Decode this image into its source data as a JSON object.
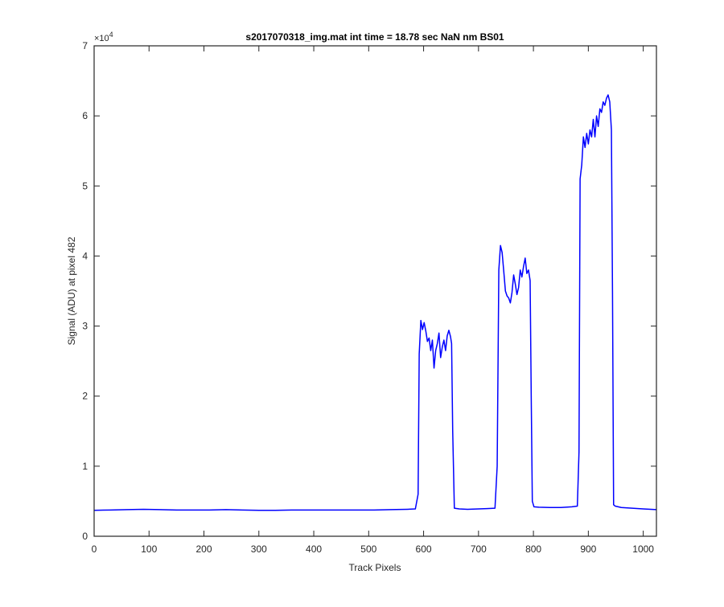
{
  "chart_data": {
    "type": "line",
    "title": "s2017070318_img.mat int time = 18.78 sec  NaN nm BS01",
    "xlabel": "Track Pixels",
    "ylabel": "Signal (ADU) at pixel 482",
    "xlim": [
      0,
      1024
    ],
    "ylim": [
      0,
      70000
    ],
    "y_exponent_label": "×10",
    "y_exponent_power": "4",
    "x_ticks": [
      0,
      100,
      200,
      300,
      400,
      500,
      600,
      700,
      800,
      900,
      1000
    ],
    "x_tick_labels": [
      "0",
      "100",
      "200",
      "300",
      "400",
      "500",
      "600",
      "700",
      "800",
      "900",
      "1000"
    ],
    "y_ticks": [
      0,
      10000,
      20000,
      30000,
      40000,
      50000,
      60000,
      70000
    ],
    "y_tick_labels": [
      "0",
      "1",
      "2",
      "3",
      "4",
      "5",
      "6",
      "7"
    ],
    "grid": false,
    "series": [
      {
        "color": "#0000ff",
        "x": [
          0,
          30,
          60,
          90,
          120,
          150,
          180,
          210,
          240,
          270,
          300,
          330,
          360,
          390,
          420,
          450,
          480,
          510,
          540,
          570,
          585,
          590,
          592,
          595,
          598,
          601,
          604,
          607,
          610,
          613,
          616,
          619,
          622,
          625,
          628,
          631,
          634,
          637,
          640,
          643,
          646,
          649,
          651,
          653,
          656,
          665,
          680,
          700,
          715,
          730,
          734,
          737,
          740,
          743,
          746,
          749,
          752,
          755,
          758,
          761,
          764,
          767,
          770,
          773,
          776,
          779,
          782,
          785,
          788,
          791,
          794,
          796,
          798,
          801,
          810,
          830,
          850,
          870,
          880,
          883,
          885,
          888,
          891,
          894,
          897,
          900,
          903,
          906,
          909,
          912,
          915,
          918,
          921,
          924,
          927,
          930,
          933,
          936,
          939,
          942,
          944,
          946,
          949,
          960,
          980,
          1000,
          1024
        ],
        "y": [
          3700,
          3750,
          3800,
          3850,
          3800,
          3750,
          3750,
          3750,
          3800,
          3750,
          3700,
          3700,
          3750,
          3750,
          3750,
          3750,
          3750,
          3750,
          3800,
          3850,
          3900,
          6000,
          26000,
          30800,
          29500,
          30500,
          29300,
          27800,
          28300,
          26500,
          28000,
          24000,
          26500,
          27500,
          29000,
          25500,
          27000,
          28000,
          26500,
          28600,
          29400,
          28500,
          27500,
          15000,
          4000,
          3900,
          3850,
          3900,
          3950,
          4000,
          10000,
          38000,
          41500,
          40500,
          37800,
          35000,
          34300,
          34000,
          33300,
          34800,
          37300,
          36000,
          34500,
          35500,
          38000,
          37000,
          38500,
          39700,
          37500,
          38000,
          36500,
          20000,
          5000,
          4200,
          4150,
          4100,
          4100,
          4200,
          4300,
          12000,
          51000,
          53000,
          57000,
          55500,
          57500,
          56000,
          58000,
          57000,
          59500,
          57000,
          60000,
          58500,
          61000,
          60500,
          62000,
          61500,
          62500,
          63000,
          62000,
          58000,
          35000,
          4500,
          4300,
          4100,
          4000,
          3900,
          3800
        ]
      }
    ]
  }
}
